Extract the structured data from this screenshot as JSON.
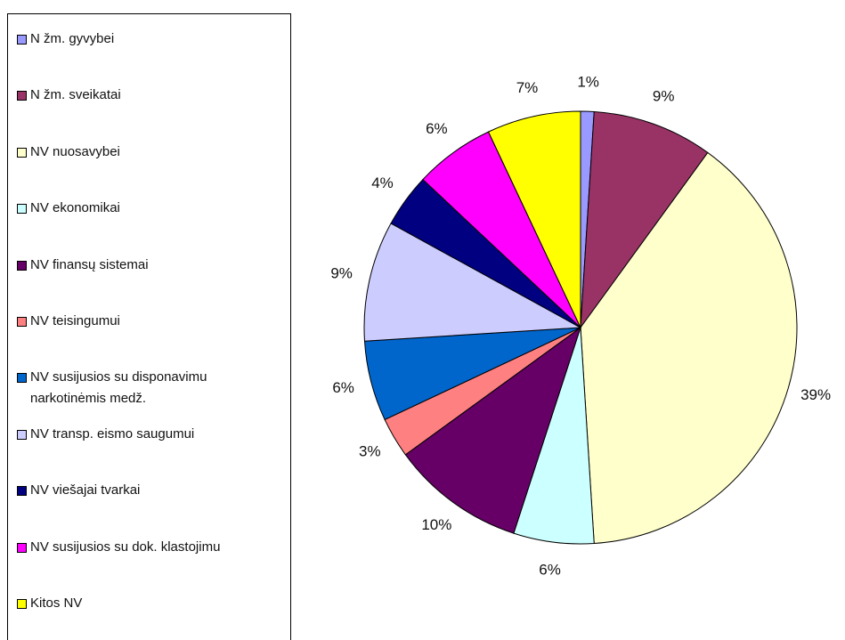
{
  "chart_data": {
    "type": "pie",
    "categories": [
      "N žm. gyvybei",
      "N žm. sveikatai",
      "NV nuosavybei",
      "NV ekonomikai",
      "NV finansų sistemai",
      "NV teisingumui",
      "NV susijusios su disponavimu narkotinėmis medž.",
      "NV transp. eismo saugumui",
      "NV viešajai tvarkai",
      "NV susijusios su dok. klastojimu",
      "Kitos NV"
    ],
    "values": [
      1,
      9,
      39,
      6,
      10,
      3,
      6,
      9,
      4,
      6,
      7
    ],
    "value_labels": [
      "1%",
      "9%",
      "39%",
      "6%",
      "10%",
      "3%",
      "6%",
      "9%",
      "4%",
      "6%",
      "7%"
    ],
    "colors": [
      "#9999ff",
      "#993366",
      "#ffffcc",
      "#ccffff",
      "#660066",
      "#ff8080",
      "#0066cc",
      "#ccccff",
      "#000080",
      "#ff00ff",
      "#ffff00"
    ],
    "legend": "left"
  }
}
